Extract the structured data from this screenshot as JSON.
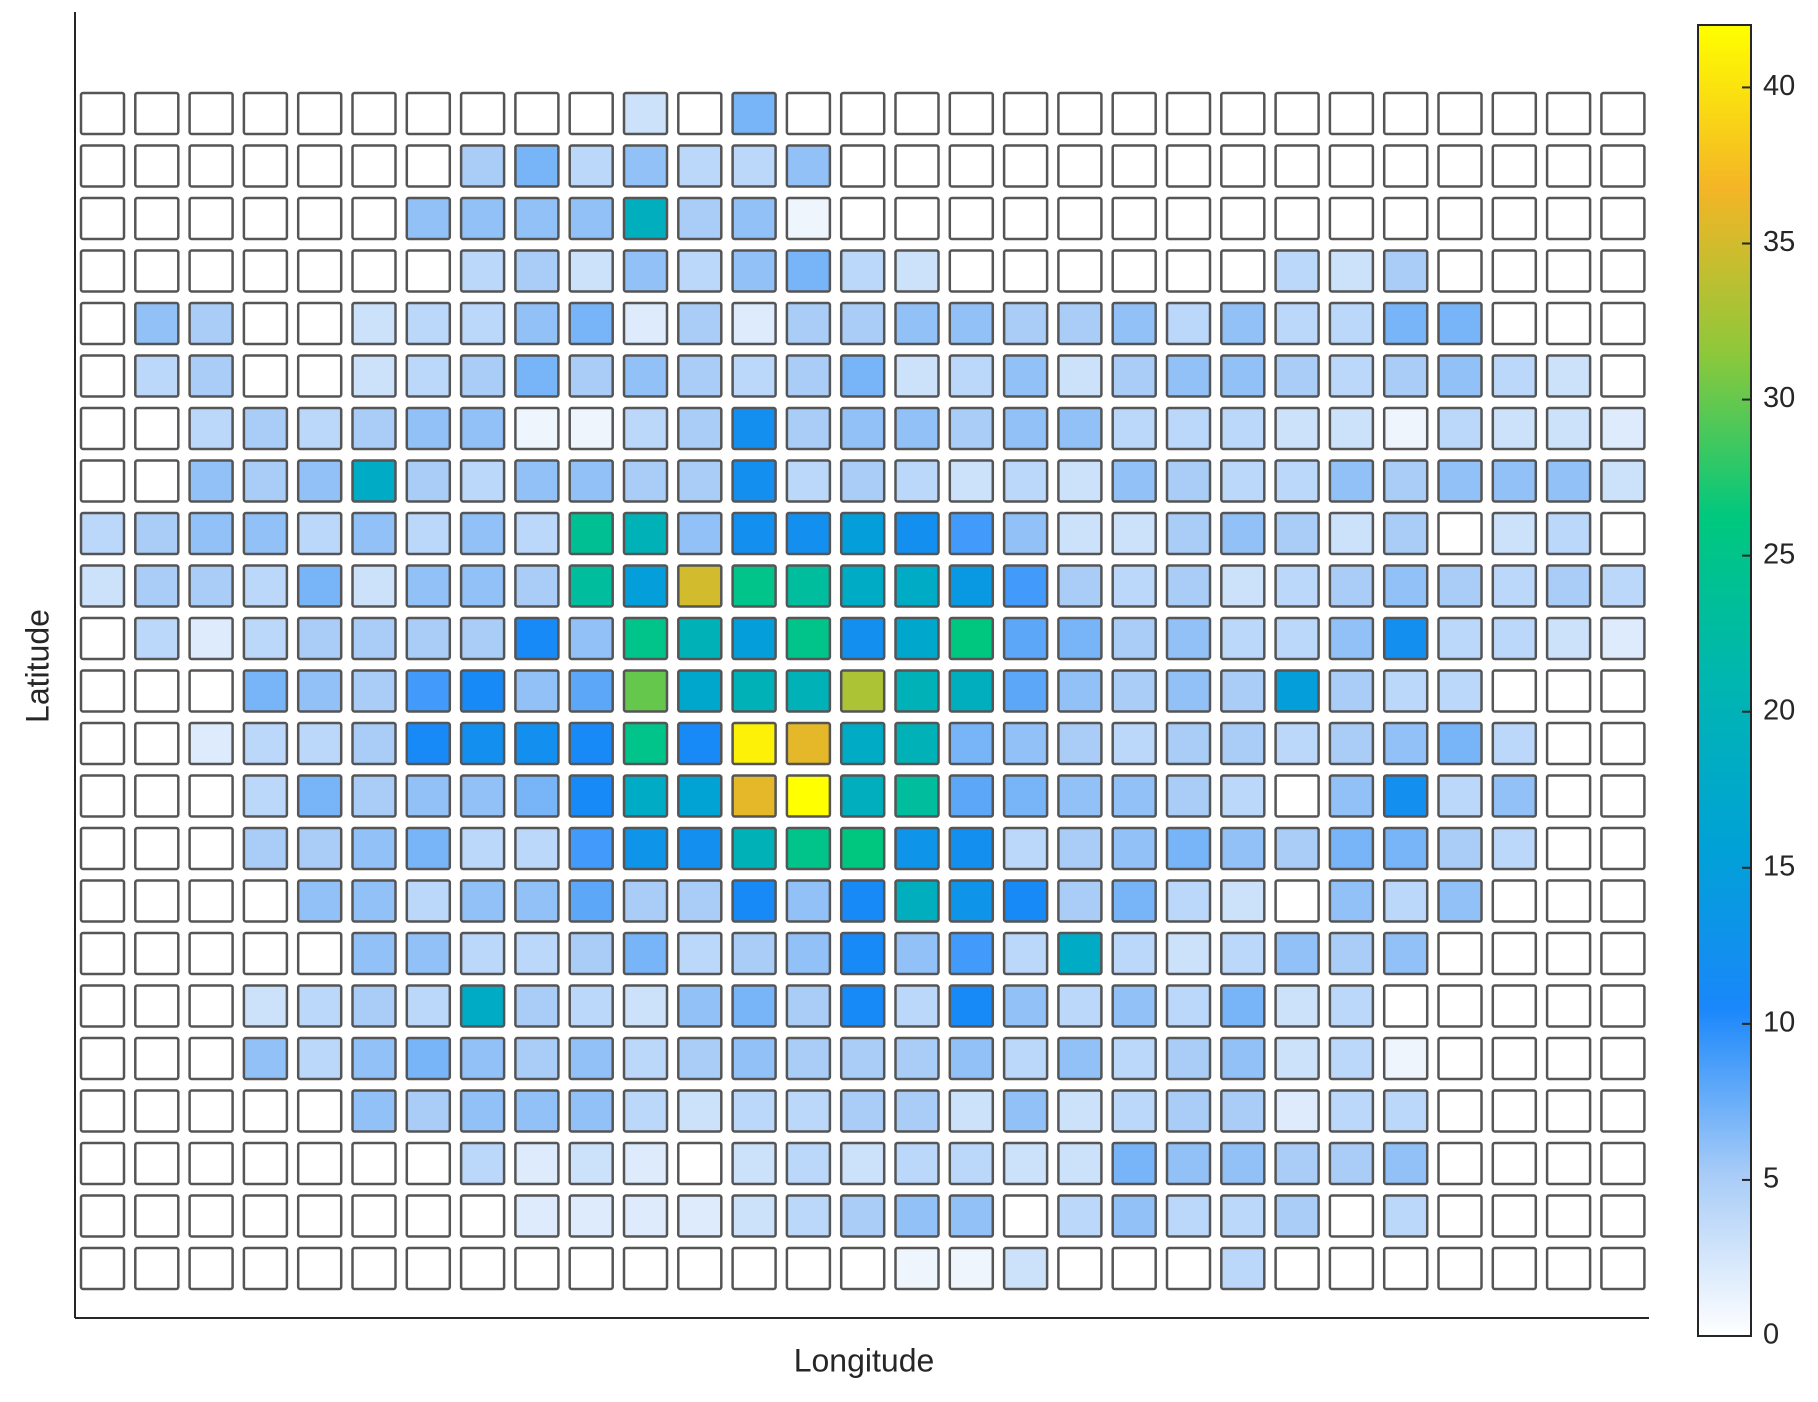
{
  "chart_data": {
    "type": "heatmap",
    "xlabel": "Longitude",
    "ylabel": "Latitude",
    "z": [
      [
        0,
        0,
        0,
        0,
        0,
        0,
        0,
        0,
        0,
        0,
        3,
        0,
        7,
        0,
        0,
        0,
        0,
        0,
        0,
        0,
        0,
        0,
        0,
        0,
        0,
        0,
        0,
        0,
        0
      ],
      [
        0,
        0,
        0,
        0,
        0,
        0,
        0,
        5,
        7,
        4,
        6,
        4,
        4,
        6,
        0,
        0,
        0,
        0,
        0,
        0,
        0,
        0,
        0,
        0,
        0,
        0,
        0,
        0,
        0
      ],
      [
        0,
        0,
        0,
        0,
        0,
        0,
        6,
        6,
        6,
        6,
        19,
        5,
        6,
        1,
        0,
        0,
        0,
        0,
        0,
        0,
        0,
        0,
        0,
        0,
        0,
        0,
        0,
        0,
        0
      ],
      [
        0,
        0,
        0,
        0,
        0,
        0,
        0,
        4,
        5,
        3,
        6,
        4,
        6,
        7,
        4,
        3,
        0,
        0,
        0,
        0,
        0,
        0,
        4,
        3,
        5,
        0,
        0,
        0,
        0
      ],
      [
        0,
        6,
        5,
        0,
        0,
        3,
        4,
        4,
        6,
        7,
        2,
        5,
        2,
        5,
        5,
        6,
        6,
        5,
        5,
        6,
        4,
        6,
        4,
        4,
        7,
        7,
        0,
        0,
        0
      ],
      [
        0,
        4,
        5,
        0,
        0,
        3,
        4,
        5,
        7,
        5,
        6,
        5,
        4,
        5,
        7,
        3,
        4,
        6,
        3,
        5,
        6,
        6,
        5,
        4,
        5,
        6,
        4,
        3,
        0
      ],
      [
        0,
        0,
        4,
        5,
        4,
        5,
        6,
        6,
        1,
        1,
        4,
        5,
        12,
        5,
        6,
        6,
        5,
        6,
        6,
        4,
        4,
        4,
        3,
        3,
        1,
        4,
        3,
        3,
        2
      ],
      [
        0,
        0,
        6,
        5,
        6,
        18,
        5,
        4,
        6,
        6,
        5,
        5,
        12,
        4,
        5,
        4,
        3,
        4,
        3,
        6,
        5,
        4,
        4,
        6,
        5,
        6,
        6,
        6,
        3
      ],
      [
        4,
        5,
        6,
        6,
        4,
        6,
        4,
        6,
        4,
        24,
        20,
        6,
        12,
        12,
        15,
        12,
        9,
        6,
        3,
        3,
        5,
        6,
        5,
        3,
        5,
        0,
        3,
        4,
        0
      ],
      [
        3,
        5,
        5,
        4,
        7,
        3,
        6,
        6,
        5,
        23,
        15,
        35,
        25,
        23,
        18,
        18,
        14,
        9,
        5,
        4,
        5,
        3,
        4,
        5,
        6,
        5,
        4,
        5,
        4
      ],
      [
        0,
        4,
        2,
        4,
        5,
        5,
        5,
        5,
        11,
        6,
        25,
        20,
        15,
        25,
        12,
        17,
        26,
        8,
        7,
        5,
        6,
        4,
        4,
        6,
        12,
        4,
        4,
        3,
        2
      ],
      [
        0,
        0,
        0,
        7,
        6,
        5,
        9,
        11,
        6,
        8,
        30,
        17,
        20,
        20,
        33,
        20,
        19,
        8,
        6,
        5,
        6,
        5,
        15,
        5,
        4,
        4,
        0,
        0,
        0
      ],
      [
        0,
        0,
        2,
        4,
        4,
        5,
        11,
        12,
        12,
        11,
        25,
        11,
        41,
        36,
        18,
        20,
        7,
        6,
        5,
        4,
        5,
        5,
        4,
        5,
        6,
        7,
        4,
        0,
        0
      ],
      [
        0,
        0,
        0,
        4,
        7,
        5,
        6,
        6,
        7,
        11,
        18,
        16,
        36,
        42,
        19,
        23,
        8,
        7,
        6,
        6,
        5,
        4,
        0,
        6,
        12,
        4,
        6,
        0,
        0
      ],
      [
        0,
        0,
        0,
        5,
        5,
        6,
        7,
        4,
        4,
        9,
        13,
        12,
        20,
        25,
        26,
        13,
        12,
        4,
        5,
        6,
        7,
        6,
        5,
        7,
        7,
        5,
        4,
        0,
        0
      ],
      [
        0,
        0,
        0,
        0,
        6,
        6,
        4,
        6,
        6,
        8,
        5,
        5,
        11,
        6,
        11,
        19,
        13,
        11,
        5,
        7,
        4,
        3,
        0,
        6,
        4,
        6,
        0,
        0,
        0
      ],
      [
        0,
        0,
        0,
        0,
        0,
        6,
        6,
        4,
        4,
        5,
        7,
        4,
        5,
        6,
        11,
        6,
        9,
        4,
        18,
        4,
        3,
        4,
        6,
        5,
        6,
        0,
        0,
        0,
        0
      ],
      [
        0,
        0,
        0,
        3,
        4,
        5,
        4,
        18,
        5,
        4,
        3,
        6,
        7,
        5,
        11,
        4,
        11,
        6,
        4,
        6,
        4,
        7,
        3,
        4,
        0,
        0,
        0,
        0,
        0
      ],
      [
        0,
        0,
        0,
        6,
        4,
        6,
        7,
        6,
        5,
        6,
        4,
        5,
        6,
        5,
        5,
        5,
        6,
        4,
        6,
        4,
        5,
        6,
        3,
        4,
        1,
        0,
        0,
        0,
        0
      ],
      [
        0,
        0,
        0,
        0,
        0,
        6,
        5,
        6,
        6,
        6,
        4,
        3,
        4,
        4,
        5,
        5,
        3,
        6,
        3,
        4,
        5,
        5,
        2,
        4,
        4,
        0,
        0,
        0,
        0
      ],
      [
        0,
        0,
        0,
        0,
        0,
        0,
        0,
        4,
        2,
        3,
        2,
        0,
        3,
        4,
        3,
        4,
        4,
        3,
        3,
        7,
        6,
        6,
        5,
        5,
        6,
        0,
        0,
        0,
        0
      ],
      [
        0,
        0,
        0,
        0,
        0,
        0,
        0,
        0,
        2,
        2,
        2,
        2,
        3,
        4,
        5,
        6,
        6,
        0,
        4,
        6,
        4,
        4,
        5,
        0,
        4,
        0,
        0,
        0,
        0
      ],
      [
        0,
        0,
        0,
        0,
        0,
        0,
        0,
        0,
        0,
        0,
        0,
        0,
        0,
        0,
        0,
        1,
        1,
        3,
        0,
        0,
        0,
        4,
        0,
        0,
        0,
        0,
        0,
        0,
        0
      ]
    ],
    "zlim": [
      0,
      42
    ],
    "zticks": [
      0,
      5,
      10,
      15,
      20,
      25,
      30,
      35,
      40
    ],
    "colormap": [
      "#ffffff",
      "#a6cbf7",
      "#1a87fb",
      "#00a2d6",
      "#00b6b0",
      "#00c87e",
      "#8ec83a",
      "#f4b526",
      "#ffff00"
    ]
  }
}
